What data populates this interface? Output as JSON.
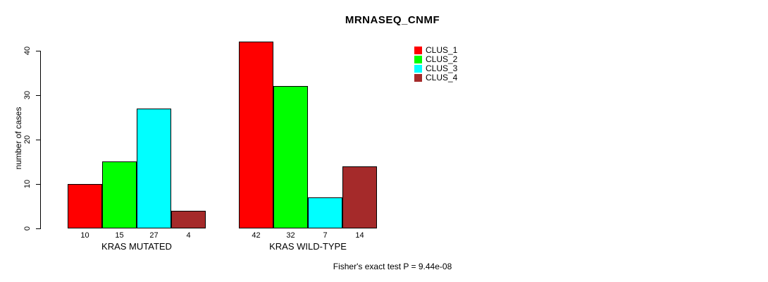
{
  "chart_data": {
    "type": "bar",
    "title": "MRNASEQ_CNMF",
    "xlabel": "",
    "ylabel": "number of cases",
    "ylim": [
      0,
      40
    ],
    "yticks": [
      0,
      10,
      20,
      30,
      40
    ],
    "grid": false,
    "legend_position": "top-right",
    "categories": [
      "KRAS MUTATED",
      "KRAS WILD-TYPE"
    ],
    "series": [
      {
        "name": "CLUS_1",
        "color": "#FF0000",
        "values": [
          10,
          42
        ]
      },
      {
        "name": "CLUS_2",
        "color": "#00FF00",
        "values": [
          15,
          32
        ]
      },
      {
        "name": "CLUS_3",
        "color": "#00FFFF",
        "values": [
          27,
          7
        ]
      },
      {
        "name": "CLUS_4",
        "color": "#A52A2A",
        "values": [
          4,
          14
        ]
      }
    ],
    "bar_value_labels": [
      [
        10,
        15,
        27,
        4
      ],
      [
        42,
        32,
        7,
        14
      ]
    ],
    "annotation": "Fisher's exact test P = 9.44e-08"
  },
  "colors": {
    "axis": "#000000",
    "bar_outline": "#000000",
    "background": "#FFFFFF"
  }
}
